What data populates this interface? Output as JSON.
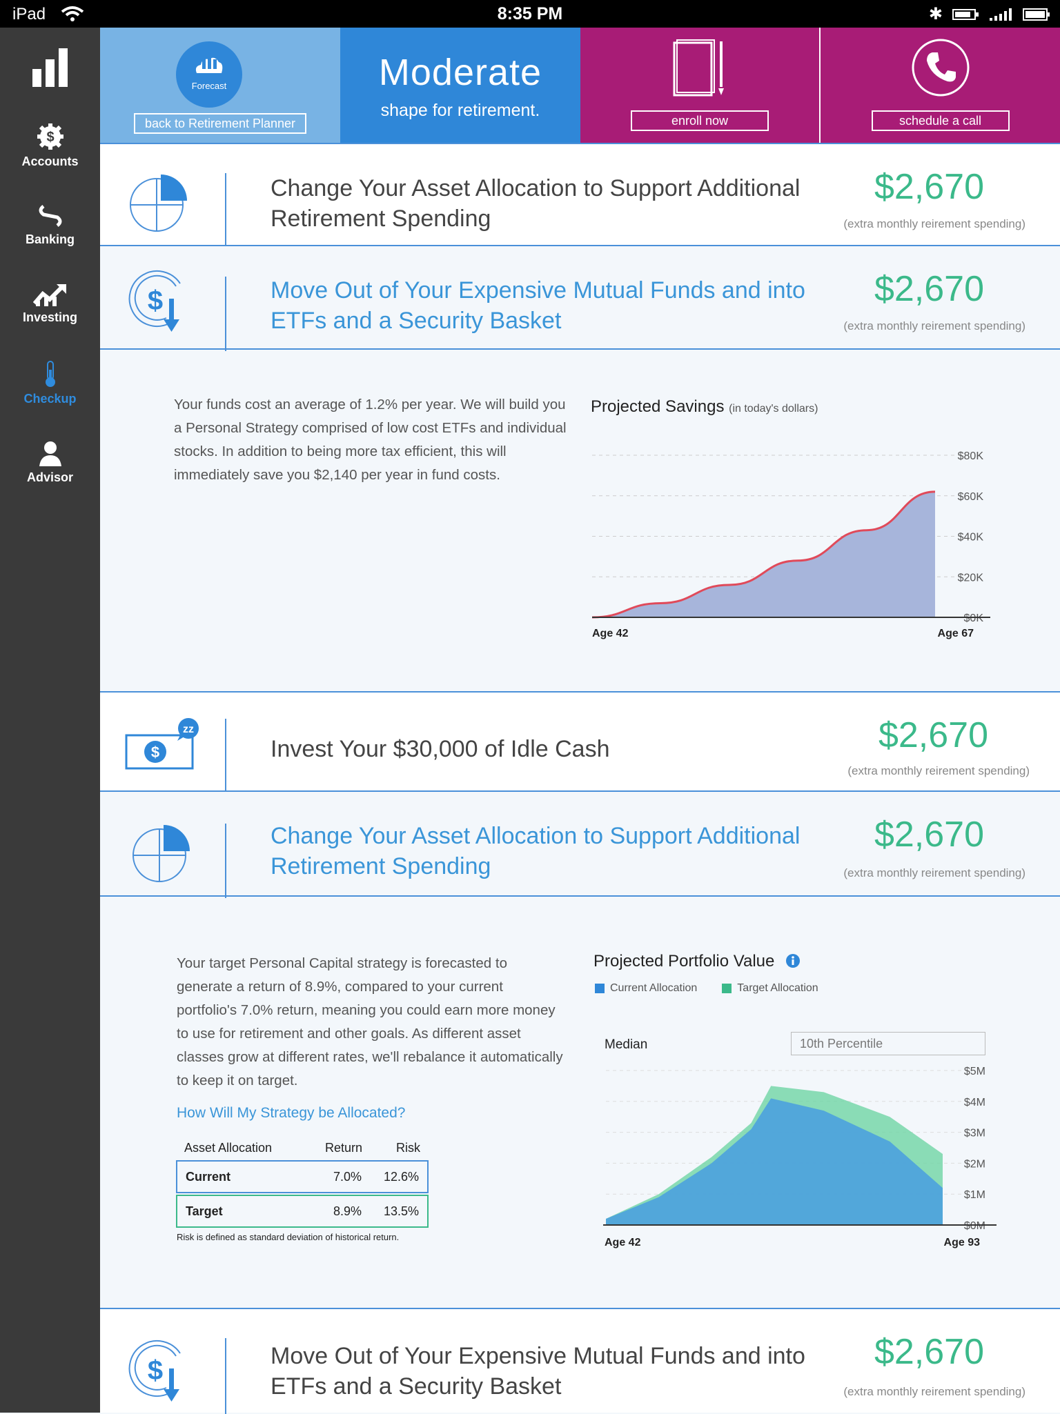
{
  "status_bar": {
    "carrier": "iPad",
    "time": "8:35 PM"
  },
  "sidebar": {
    "items": [
      {
        "label": "",
        "icon": "bar-chart-icon"
      },
      {
        "label": "Accounts",
        "icon": "dollar-gear-icon"
      },
      {
        "label": "Banking",
        "icon": "transfer-icon"
      },
      {
        "label": "Investing",
        "icon": "trend-icon"
      },
      {
        "label": "Checkup",
        "icon": "thermometer-icon"
      },
      {
        "label": "Advisor",
        "icon": "person-icon"
      }
    ]
  },
  "header": {
    "forecast_label": "Forecast",
    "back_button": "back to Retirement Planner",
    "title": "Moderate",
    "subtitle": "shape for retirement.",
    "enroll_button": "enroll now",
    "schedule_button": "schedule a call"
  },
  "cards": [
    {
      "title": "Change Your Asset Allocation to Support Additional Retirement Spending",
      "amount": "$2,670",
      "amount_note": "(extra monthly reirement spending)"
    },
    {
      "title": "Move Out of Your Expensive Mutual Funds and into ETFs and a Security Basket",
      "amount": "$2,670",
      "amount_note": "(extra monthly reirement spending)"
    },
    {
      "title": "Invest Your $30,000 of Idle Cash",
      "amount": "$2,670",
      "amount_note": "(extra monthly reirement spending)",
      "badge": "zz"
    },
    {
      "title": "Change Your Asset Allocation to Support Additional Retirement Spending",
      "amount": "$2,670",
      "amount_note": "(extra monthly reirement spending)"
    },
    {
      "title": "Move Out of Your Expensive Mutual Funds and into ETFs and a Security Basket",
      "amount": "$2,670",
      "amount_note": "(extra monthly reirement spending)"
    }
  ],
  "funds_section": {
    "text": "Your funds cost an average of 1.2% per year. We will build you a Personal Strategy comprised of low cost ETFs and individual stocks. In addition to being more tax efficient, this will immediately save you $2,140 per year in fund costs."
  },
  "allocation_section": {
    "text": "Your target Personal Capital strategy is forecasted to generate a return of 8.9%, compared to your current portfolio's 7.0% return, meaning you could earn more money to use for retirement and other goals. As different asset classes grow at different rates, we'll rebalance it automatically to keep it on target.",
    "link": "How Will My Strategy be Allocated?",
    "table": {
      "headers": [
        "Asset Allocation",
        "Return",
        "Risk"
      ],
      "rows": [
        {
          "name": "Current",
          "return": "7.0%",
          "risk": "12.6%"
        },
        {
          "name": "Target",
          "return": "8.9%",
          "risk": "13.5%"
        }
      ]
    },
    "footnote": "Risk is defined as standard deviation of historical return."
  },
  "chart_data": [
    {
      "type": "area",
      "title": "Projected Savings",
      "subtitle": "(in today's dollars)",
      "x": [
        42,
        47,
        52,
        57,
        62,
        67
      ],
      "values": [
        0,
        7,
        16,
        28,
        43,
        62
      ],
      "y_unit": "$K",
      "ylim": [
        0,
        80
      ],
      "yticks": [
        "$0K",
        "$20K",
        "$40K",
        "$60K",
        "$80K"
      ],
      "x_labels": [
        "Age 42",
        "Age 67"
      ],
      "colors": {
        "fill": "#a7b5db",
        "line": "#e04a5a"
      }
    },
    {
      "type": "area",
      "title": "Projected Portfolio Value",
      "legend": [
        "Current Allocation",
        "Target Allocation"
      ],
      "toggle": {
        "left": "Median",
        "right": "10th Percentile"
      },
      "yticks": [
        "$0M",
        "$1M",
        "$2M",
        "$3M",
        "$4M",
        "$5M"
      ],
      "ylim": [
        0,
        5
      ],
      "x_labels": [
        "Age 42",
        "Age 93"
      ],
      "series": [
        {
          "name": "Current Allocation",
          "color": "#4fa3dc",
          "x": [
            42,
            50,
            58,
            64,
            67,
            75,
            85,
            93
          ],
          "values": [
            0.2,
            0.9,
            2.0,
            3.1,
            4.1,
            3.7,
            2.7,
            1.2
          ]
        },
        {
          "name": "Target Allocation",
          "color": "#6fd4a5",
          "x": [
            42,
            50,
            58,
            64,
            67,
            75,
            85,
            93
          ],
          "values": [
            0.2,
            1.0,
            2.2,
            3.3,
            4.5,
            4.3,
            3.5,
            2.3
          ]
        }
      ]
    }
  ]
}
